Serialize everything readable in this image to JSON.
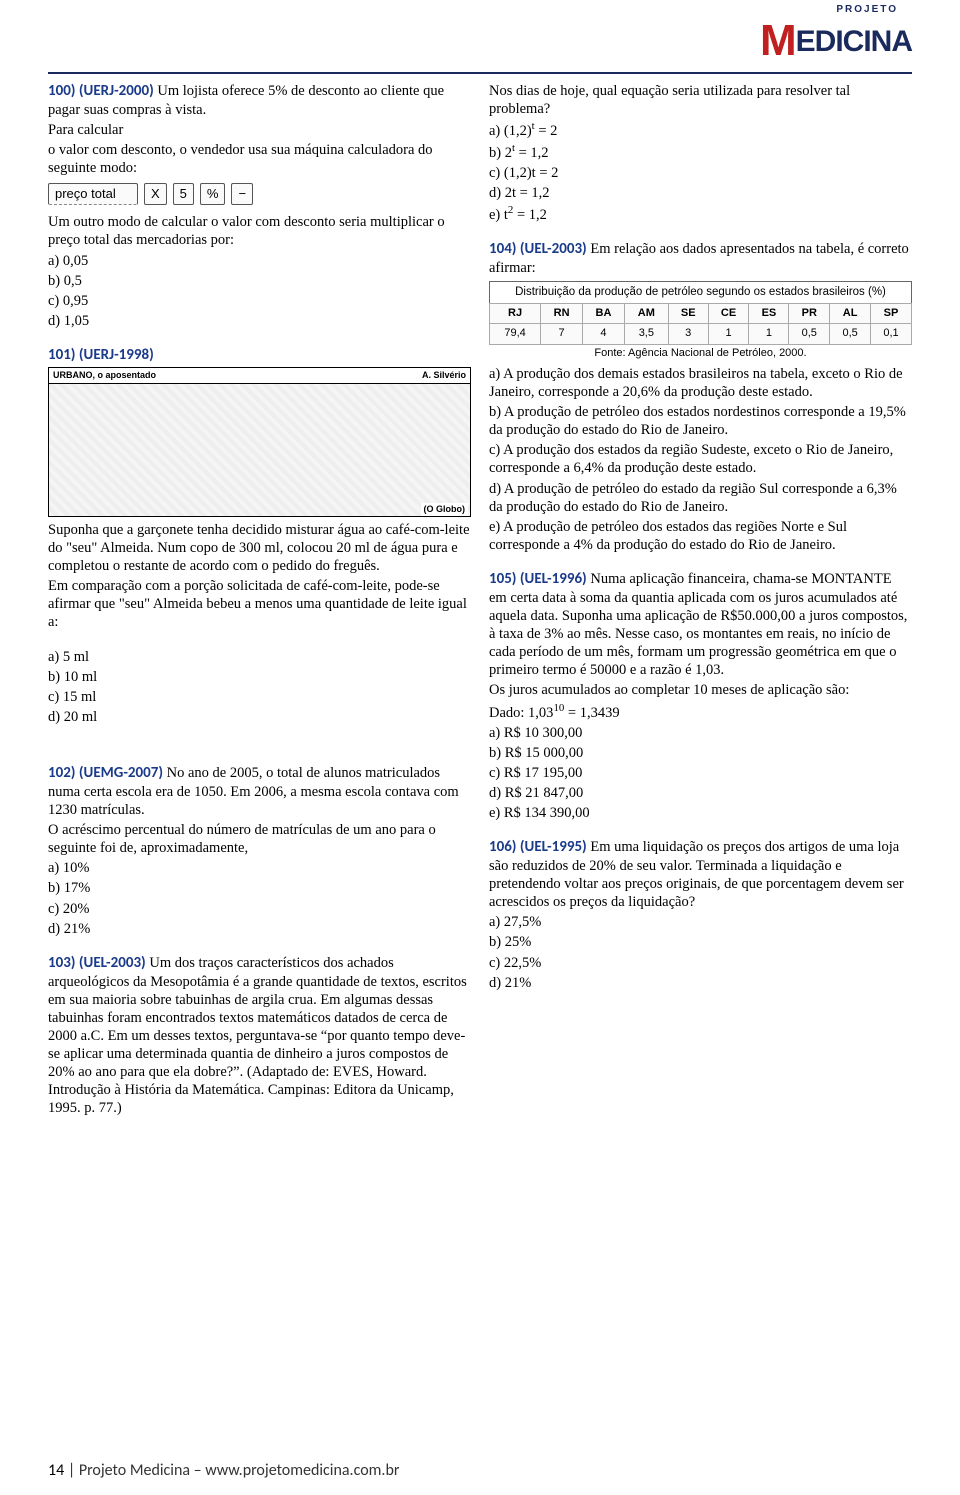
{
  "logo": {
    "top": "PROJETO",
    "main_red": "M",
    "main_rest": "EDICINA"
  },
  "q100": {
    "tag": "100) (UERJ-2000)",
    "intro": " Um lojista oferece 5% de desconto ao cliente que pagar suas compras à vista.",
    "line2": "Para calcular",
    "line3": "o valor com desconto, o vendedor usa sua máquina calculadora do seguinte modo:",
    "calc": {
      "preco": "preço total",
      "x": "X",
      "five": "5",
      "pct": "%",
      "minus": "−"
    },
    "line4": "Um outro modo de calcular o valor com desconto seria multiplicar o preço total das mercadorias por:",
    "opts": [
      "a) 0,05",
      "b) 0,5",
      "c) 0,95",
      "d) 1,05"
    ]
  },
  "q101": {
    "tag": "101) (UERJ-1998)",
    "comic_title": "URBANO, o aposentado",
    "comic_author": "A. Silvério",
    "comic_src": "(O Globo)",
    "p1": "Suponha que a garçonete tenha decidido misturar água ao café-com-leite do \"seu\" Almeida. Num copo de 300 ml, colocou 20 ml de água pura e completou o restante de acordo com o pedido do freguês.",
    "p2": "Em comparação com a porção solicitada de café-com-leite, pode-se afirmar que \"seu\" Almeida bebeu a menos uma quantidade de leite igual a:",
    "opts": [
      "a) 5 ml",
      "b) 10 ml",
      "c) 15 ml",
      "d) 20 ml"
    ]
  },
  "q102": {
    "tag": "102) (UEMG-2007)",
    "body": " No ano de 2005, o total de alunos matriculados numa certa escola era de 1050. Em 2006, a mesma escola contava com 1230 matrículas.",
    "body2": "O acréscimo percentual do número de matrículas de um ano para o seguinte foi de, aproximadamente,",
    "opts": [
      "a) 10%",
      "b) 17%",
      "c) 20%",
      "d) 21%"
    ]
  },
  "q103": {
    "tag": "103) (UEL-2003)",
    "body": " Um dos traços característicos dos achados arqueológicos da Mesopotâmia é a grande quantidade de textos, escritos em sua maioria sobre tabuinhas de argila crua. Em algumas dessas tabuinhas foram encontrados textos matemáticos datados de cerca de 2000 a.C. Em um desses textos, perguntava-se “por quanto tempo deve-se aplicar uma determinada quantia de dinheiro a juros compostos de 20% ao ano para que ela dobre?”. (Adaptado de: EVES, Howard. Introdução à História da Matemática. Campinas: Editora da Unicamp, 1995. p. 77.)"
  },
  "q103r": {
    "p1": "Nos dias de hoje, qual equação seria utilizada para resolver tal problema?",
    "opts_html": [
      "a) (1,2)<sup>t</sup> = 2",
      "b) 2<sup>t</sup> = 1,2",
      "c) (1,2)t = 2",
      "d) 2t = 1,2",
      "e) t<sup>2</sup> = 1,2"
    ]
  },
  "q104": {
    "tag": "104) (UEL-2003)",
    "intro": " Em relação aos dados apresentados na tabela, é correto afirmar:",
    "table_title": "Distribuição da produção de petróleo segundo os estados brasileiros (%)",
    "headers": [
      "RJ",
      "RN",
      "BA",
      "AM",
      "SE",
      "CE",
      "ES",
      "PR",
      "AL",
      "SP"
    ],
    "row": [
      "79,4",
      "7",
      "4",
      "3,5",
      "3",
      "1",
      "1",
      "0,5",
      "0,5",
      "0,1"
    ],
    "fonte": "Fonte: Agência Nacional de Petróleo, 2000.",
    "opts": [
      "a) A produção dos demais estados brasileiros na tabela, exceto o Rio de Janeiro, corresponde a 20,6% da produção deste estado.",
      "b) A produção de petróleo dos estados nordestinos corresponde a 19,5% da produção do estado do Rio de Janeiro.",
      "c) A produção dos estados da região Sudeste, exceto o Rio de Janeiro, corresponde a 6,4% da produção deste estado.",
      "d) A produção de petróleo do estado da região Sul corresponde a 6,3% da produção do estado do Rio de Janeiro.",
      "e) A produção de petróleo dos estados das regiões Norte e Sul corresponde a 4% da produção do estado do Rio de Janeiro."
    ]
  },
  "q105": {
    "tag": "105) (UEL-1996)",
    "body": " Numa aplicação financeira, chama-se MONTANTE em certa data à soma da quantia aplicada com os juros acumulados até aquela data. Suponha uma aplicação de R$50.000,00 a juros compostos, à taxa de 3% ao mês. Nesse caso, os montantes em reais, no início de cada período de um mês, formam um progressão geométrica em que o primeiro termo é 50000 e a razão é 1,03.",
    "body2": "Os juros acumulados ao completar 10 meses de aplicação são:",
    "dado_html": "Dado: 1,03<sup>10</sup> = 1,3439",
    "opts": [
      "a) R$ 10 300,00",
      "b) R$ 15 000,00",
      "c) R$ 17 195,00",
      "d) R$ 21 847,00",
      "e) R$ 134 390,00"
    ]
  },
  "q106": {
    "tag": "106) (UEL-1995)",
    "body": " Em uma liquidação os preços dos artigos de uma loja são reduzidos de 20% de seu valor. Terminada a liquidação e pretendendo voltar aos preços originais, de que porcentagem devem ser acrescidos os preços da liquidação?",
    "opts": [
      "a) 27,5%",
      "b) 25%",
      "c) 22,5%",
      "d) 21%"
    ]
  },
  "footer": {
    "page": "14",
    "sep": " | ",
    "site": "Projeto Medicina – www.projetomedicina.com.br"
  }
}
